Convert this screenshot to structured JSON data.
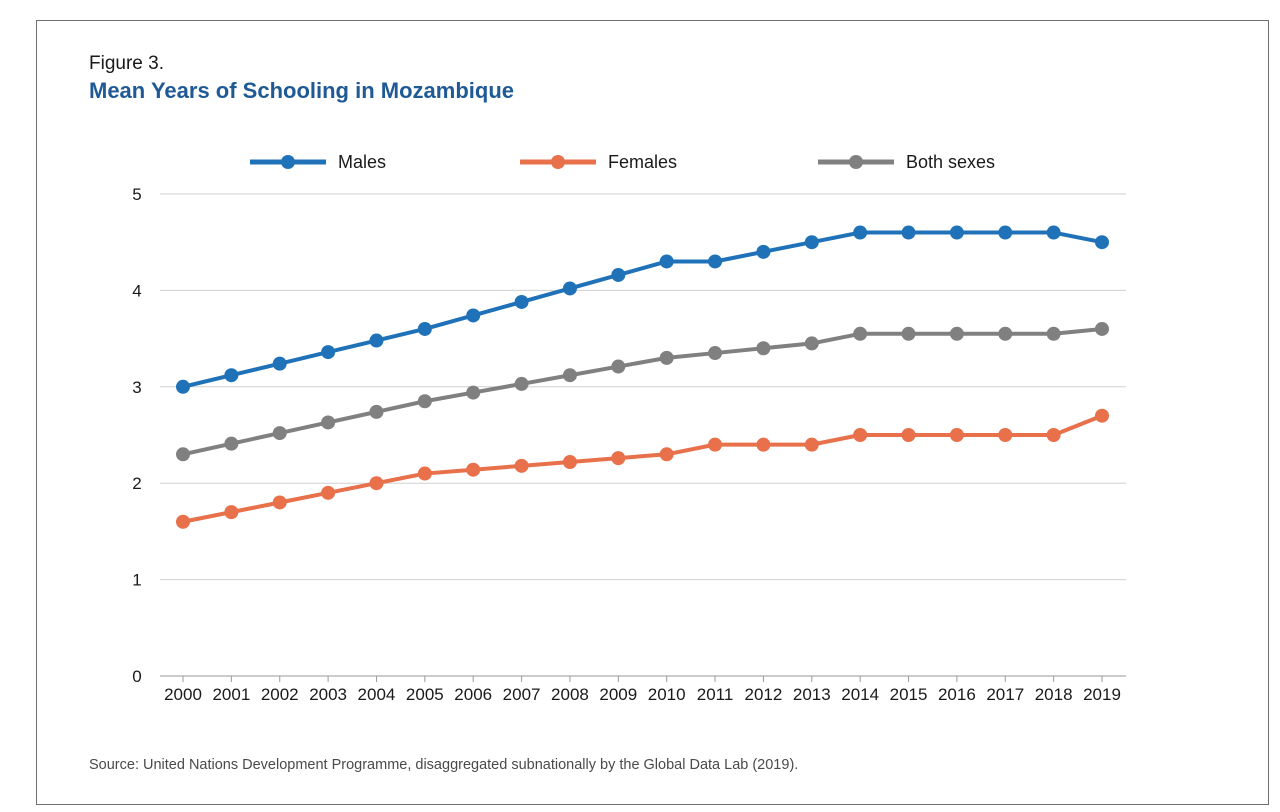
{
  "figure": {
    "label": "Figure 3.",
    "title": "Mean Years of Schooling in Mozambique",
    "source": "Source: United Nations Development Programme, disaggregated subnationally by the Global Data Lab (2019)."
  },
  "chart_data": {
    "type": "line",
    "title": "Mean Years of Schooling in Mozambique",
    "xlabel": "",
    "ylabel": "",
    "x": [
      "2000",
      "2001",
      "2002",
      "2003",
      "2004",
      "2005",
      "2006",
      "2007",
      "2008",
      "2009",
      "2010",
      "2011",
      "2012",
      "2013",
      "2014",
      "2015",
      "2016",
      "2017",
      "2018",
      "2019"
    ],
    "ylim": [
      0,
      5
    ],
    "yticks": [
      "0",
      "1",
      "2",
      "3",
      "4",
      "5"
    ],
    "grid": true,
    "legend_position": "top",
    "series": [
      {
        "name": "Males",
        "color": "#1f72b8",
        "values": [
          3.0,
          3.12,
          3.24,
          3.36,
          3.48,
          3.6,
          3.74,
          3.88,
          4.02,
          4.16,
          4.3,
          4.3,
          4.4,
          4.5,
          4.6,
          4.6,
          4.6,
          4.6,
          4.6,
          4.5
        ]
      },
      {
        "name": "Females",
        "color": "#e8704a",
        "values": [
          1.6,
          1.7,
          1.8,
          1.9,
          2.0,
          2.1,
          2.14,
          2.18,
          2.22,
          2.26,
          2.3,
          2.4,
          2.4,
          2.4,
          2.5,
          2.5,
          2.5,
          2.5,
          2.5,
          2.7
        ]
      },
      {
        "name": "Both sexes",
        "color": "#808080",
        "values": [
          2.3,
          2.41,
          2.52,
          2.63,
          2.74,
          2.85,
          2.94,
          3.03,
          3.12,
          3.21,
          3.3,
          3.35,
          3.4,
          3.45,
          3.55,
          3.55,
          3.55,
          3.55,
          3.55,
          3.6
        ]
      }
    ]
  }
}
